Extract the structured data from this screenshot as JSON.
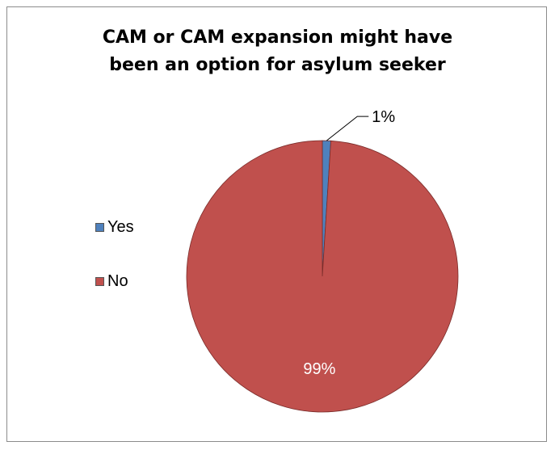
{
  "chart_data": {
    "type": "pie",
    "title": [
      "CAM or CAM expansion might have",
      "been an option for asylum seeker"
    ],
    "slices": [
      {
        "label": "Yes",
        "value": 1,
        "data_label": "1%",
        "color": "#4f81bd"
      },
      {
        "label": "No",
        "value": 99,
        "data_label": "99%",
        "color": "#c0504d"
      }
    ],
    "legend_position": "left"
  }
}
